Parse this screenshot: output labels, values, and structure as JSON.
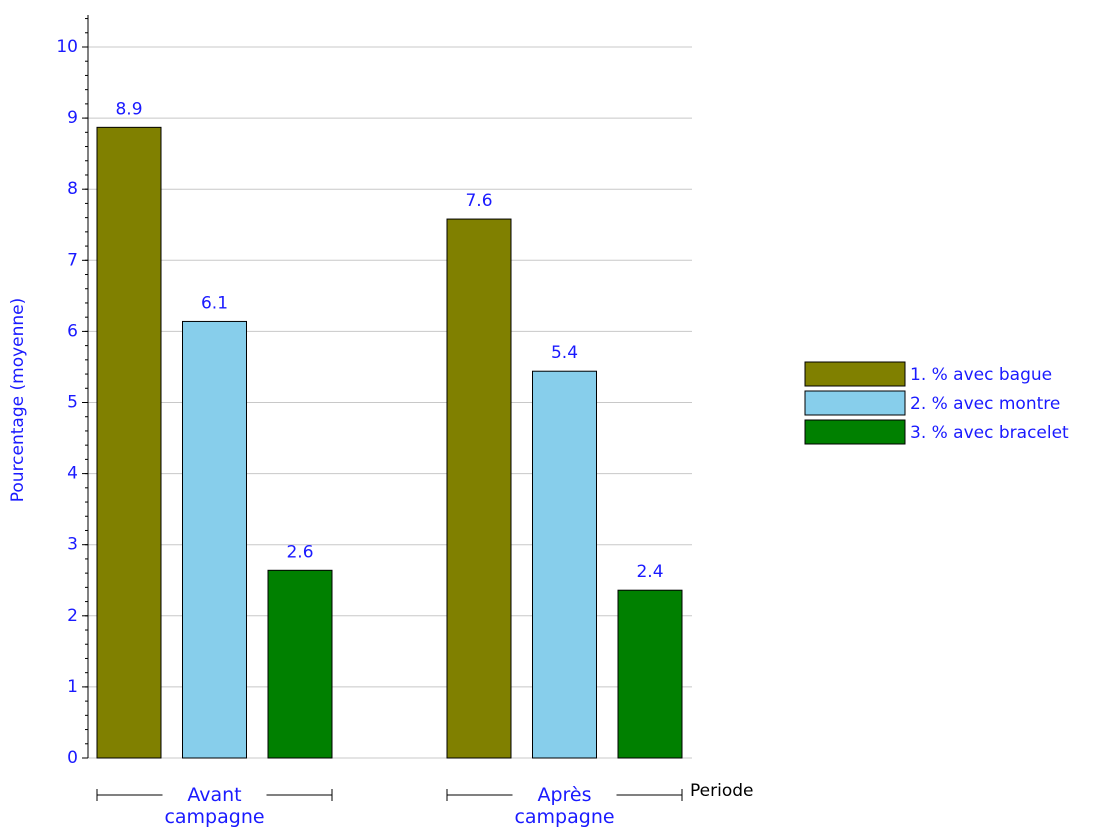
{
  "chart_data": {
    "type": "bar",
    "y_label": "Pourcentage (moyenne)",
    "x_label": "Periode",
    "categories": [
      "Avant campagne",
      "Après campagne"
    ],
    "series": [
      {
        "name": "1. % avec bague",
        "color": "#808000",
        "values": [
          8.87,
          7.58
        ],
        "value_labels": [
          "8.9",
          "7.6"
        ]
      },
      {
        "name": "2. % avec montre",
        "color": "#87ceeb",
        "values": [
          6.14,
          5.44
        ],
        "value_labels": [
          "6.1",
          "5.4"
        ]
      },
      {
        "name": "3. % avec bracelet",
        "color": "#008000",
        "values": [
          2.64,
          2.36
        ],
        "value_labels": [
          "2.6",
          "2.4"
        ]
      }
    ],
    "ylim": [
      0,
      10.45
    ],
    "yticks": [
      0,
      1,
      2,
      3,
      4,
      5,
      6,
      7,
      8,
      9,
      10
    ],
    "grid": true
  }
}
